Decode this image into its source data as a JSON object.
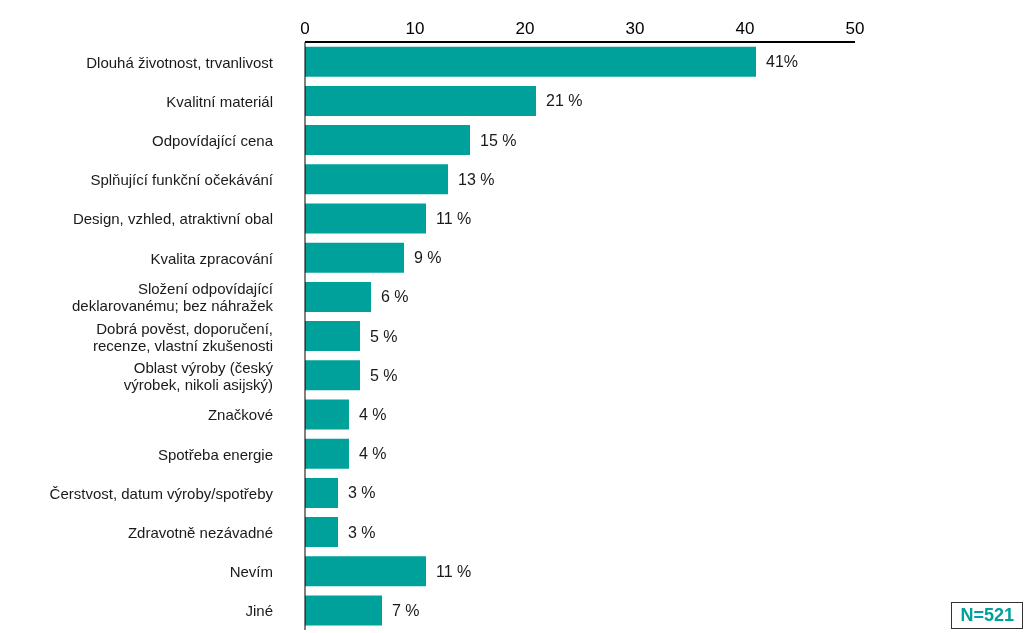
{
  "chart_data": {
    "type": "bar",
    "orientation": "horizontal",
    "categories": [
      "Dlouhá životnost, trvanlivost",
      "Kvalitní materiál",
      "Odpovídající cena",
      "Splňující funkční očekávání",
      "Design, vzhled, atraktivní obal",
      "Kvalita zpracování",
      "Složení odpovídající deklarovanému; bez náhražek",
      "Dobrá pověst, doporučení, recenze, vlastní zkušenosti",
      "Oblast výroby (český výrobek, nikoli asijský)",
      "Značkové",
      "Spotřeba energie",
      "Čerstvost, datum výroby/spotřeby",
      "Zdravotně nezávadné",
      "Nevím",
      "Jiné"
    ],
    "values": [
      41,
      21,
      15,
      13,
      11,
      9,
      6,
      5,
      5,
      4,
      4,
      3,
      3,
      11,
      7
    ],
    "value_labels": [
      "41%",
      "21 %",
      "15 %",
      "13 %",
      "11 %",
      "9 %",
      "6 %",
      "5 %",
      "5 %",
      "4 %",
      "4 %",
      "3 %",
      "3 %",
      "11 %",
      "7 %"
    ],
    "color": "#00a19a",
    "xlim": [
      0,
      50
    ],
    "xticks": [
      0,
      10,
      20,
      30,
      40,
      50
    ],
    "annotations": [
      "N=521"
    ]
  }
}
